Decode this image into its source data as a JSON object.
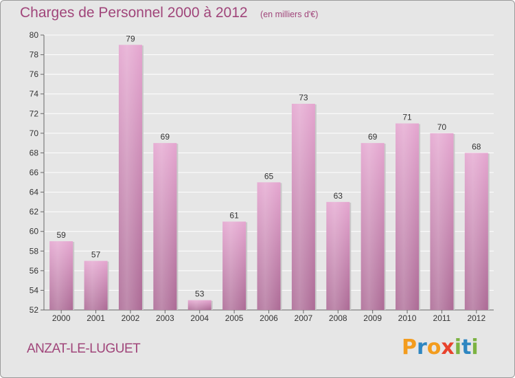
{
  "title": "Charges de Personnel 2000 à 2012",
  "subtitle": "(en milliers d'€)",
  "commune": "ANZAT-LE-LUGUET",
  "brand": {
    "letters": [
      "P",
      "r",
      "o",
      "x",
      "i",
      "t",
      "i"
    ],
    "colors": [
      "#f39c1e",
      "#2e86c1",
      "#f39c1e",
      "#e8422c",
      "#7cb342",
      "#2e86c1",
      "#7cb342"
    ]
  },
  "colors": {
    "title": "#a0457a",
    "bar_top": "#e4a5cf",
    "bar_bottom": "#ac6a95",
    "background": "#e6e6e6"
  },
  "chart_data": {
    "type": "bar",
    "title": "Charges de Personnel 2000 à 2012",
    "subtitle": "(en milliers d'€)",
    "categories": [
      "2000",
      "2001",
      "2002",
      "2003",
      "2004",
      "2005",
      "2006",
      "2007",
      "2008",
      "2009",
      "2010",
      "2011",
      "2012"
    ],
    "values": [
      59,
      57,
      79,
      69,
      53,
      61,
      65,
      73,
      63,
      69,
      71,
      70,
      68
    ],
    "data_labels": [
      "59",
      "57",
      "79",
      "69",
      "53",
      "61",
      "65",
      "73",
      "63",
      "69",
      "71",
      "70",
      "68"
    ],
    "y_ticks": [
      "52",
      "54",
      "56",
      "58",
      "60",
      "62",
      "64",
      "66",
      "68",
      "70",
      "72",
      "74",
      "76",
      "78",
      "80"
    ],
    "ylim": [
      52,
      80
    ],
    "grid": true,
    "legend": "none"
  }
}
